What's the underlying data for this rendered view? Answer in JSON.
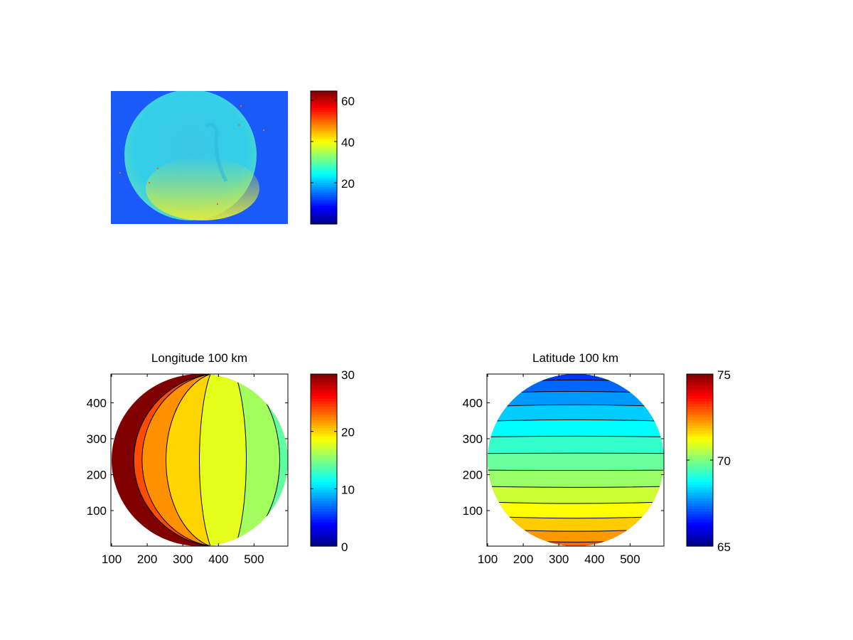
{
  "chart_data": [
    {
      "type": "heatmap",
      "title": "",
      "description_kind": "image",
      "colorbar": {
        "range": [
          0,
          64.5
        ],
        "ticks": [
          20,
          40,
          60
        ]
      },
      "colors": {
        "background": "#1a5cff",
        "disk": "#33d6f0",
        "rim": "#d8ef3a"
      }
    },
    {
      "type": "heatmap",
      "title": "Longitude 100 km",
      "xlim": [
        98,
        595
      ],
      "ylim": [
        1,
        480
      ],
      "xticks": [
        100,
        200,
        300,
        400,
        500
      ],
      "yticks": [
        100,
        200,
        300,
        400
      ],
      "colorbar": {
        "range": [
          0,
          30
        ],
        "ticks": [
          0,
          10,
          20,
          30
        ]
      },
      "contour_levels": [
        29,
        27,
        25,
        23,
        21,
        19,
        17,
        15,
        13,
        11,
        9,
        7,
        5
      ],
      "center_value": 18
    },
    {
      "type": "heatmap",
      "title": "Latitude 100 km",
      "xlim": [
        98,
        595
      ],
      "ylim": [
        1,
        480
      ],
      "xticks": [
        100,
        200,
        300,
        400,
        500
      ],
      "yticks": [
        100,
        200,
        300,
        400
      ],
      "colorbar": {
        "range": [
          65,
          75
        ],
        "ticks": [
          65,
          70,
          75
        ]
      },
      "contour_levels": [
        65.5,
        66,
        66.5,
        67,
        67.5,
        68,
        68.5,
        69,
        69.5,
        70,
        70.5,
        71,
        71.5,
        72,
        72.5,
        73,
        73.5
      ],
      "center_value": 69.7
    }
  ]
}
